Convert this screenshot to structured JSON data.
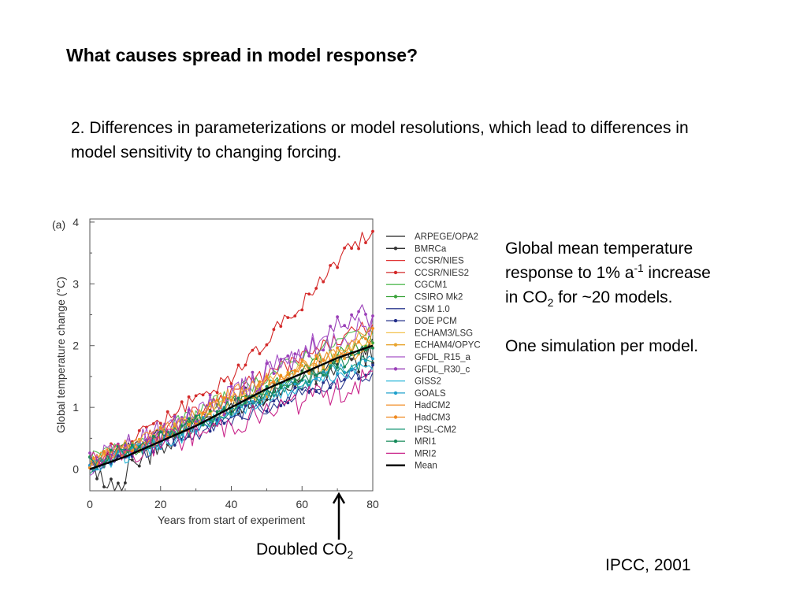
{
  "slide": {
    "title": "What causes spread in model response?",
    "point": "2. Differences in parameterizations or model resolutions, which lead to differences in model sensitivity to changing forcing.",
    "side_line1": "Global mean temperature",
    "side_line2a": "response to 1% a",
    "side_line2sup": "-1",
    "side_line2b": " increase",
    "side_line3a": "in CO",
    "side_line3sub": "2",
    "side_line3b": " for ~20 models.",
    "side_line4": "One simulation per model.",
    "doubled_a": "Doubled CO",
    "doubled_sub": "2",
    "citation": "IPCC, 2001"
  },
  "chart_data": {
    "type": "line",
    "panel_label": "(a)",
    "xlabel": "Years from start of experiment",
    "ylabel": "Global temperature change (°C)",
    "xlim": [
      0,
      80
    ],
    "ylim": [
      -0.35,
      4.05
    ],
    "xticks": [
      0,
      20,
      40,
      60,
      80
    ],
    "yticks": [
      0,
      1,
      2,
      3,
      4
    ],
    "legend_position": "right",
    "series": [
      {
        "name": "ARPEGE/OPA2",
        "color": "#222222",
        "marker": false,
        "anchors": [
          [
            0,
            0.05
          ],
          [
            20,
            0.55
          ],
          [
            40,
            0.95
          ],
          [
            60,
            1.45
          ],
          [
            80,
            2.0
          ]
        ]
      },
      {
        "name": "BMRCa",
        "color": "#333333",
        "marker": true,
        "anchors": [
          [
            0,
            0.0
          ],
          [
            6,
            -0.3
          ],
          [
            20,
            0.4
          ],
          [
            40,
            1.0
          ],
          [
            60,
            1.5
          ],
          [
            80,
            1.85
          ]
        ]
      },
      {
        "name": "CCSR/NIES",
        "color": "#e03030",
        "marker": false,
        "anchors": [
          [
            0,
            0.1
          ],
          [
            20,
            0.6
          ],
          [
            40,
            1.25
          ],
          [
            60,
            1.8
          ],
          [
            80,
            2.35
          ]
        ]
      },
      {
        "name": "CCSR/NIES2",
        "color": "#d42a2a",
        "marker": true,
        "anchors": [
          [
            0,
            0.1
          ],
          [
            20,
            0.75
          ],
          [
            40,
            1.5
          ],
          [
            55,
            2.4
          ],
          [
            65,
            3.0
          ],
          [
            72,
            3.55
          ],
          [
            80,
            3.8
          ]
        ]
      },
      {
        "name": "CGCM1",
        "color": "#55bb55",
        "marker": false,
        "anchors": [
          [
            0,
            0.15
          ],
          [
            20,
            0.6
          ],
          [
            40,
            1.2
          ],
          [
            60,
            1.8
          ],
          [
            80,
            2.3
          ]
        ]
      },
      {
        "name": "CSIRO Mk2",
        "color": "#3aa33a",
        "marker": true,
        "anchors": [
          [
            0,
            0.1
          ],
          [
            20,
            0.5
          ],
          [
            40,
            1.05
          ],
          [
            60,
            1.6
          ],
          [
            80,
            2.1
          ]
        ]
      },
      {
        "name": "CSM 1.0",
        "color": "#2b3a8f",
        "marker": false,
        "anchors": [
          [
            0,
            0.05
          ],
          [
            20,
            0.35
          ],
          [
            40,
            0.8
          ],
          [
            60,
            1.2
          ],
          [
            80,
            1.55
          ]
        ]
      },
      {
        "name": "DOE PCM",
        "color": "#24308a",
        "marker": true,
        "anchors": [
          [
            0,
            0.05
          ],
          [
            20,
            0.4
          ],
          [
            40,
            0.85
          ],
          [
            60,
            1.25
          ],
          [
            80,
            1.6
          ]
        ]
      },
      {
        "name": "ECHAM3/LSG",
        "color": "#f2c14e",
        "marker": false,
        "anchors": [
          [
            0,
            0.1
          ],
          [
            20,
            0.55
          ],
          [
            40,
            1.1
          ],
          [
            60,
            1.65
          ],
          [
            80,
            2.1
          ]
        ]
      },
      {
        "name": "ECHAM4/OPYC",
        "color": "#e8a530",
        "marker": true,
        "anchors": [
          [
            0,
            0.1
          ],
          [
            20,
            0.5
          ],
          [
            40,
            1.05
          ],
          [
            60,
            1.55
          ],
          [
            80,
            2.0
          ]
        ]
      },
      {
        "name": "GFDL_R15_a",
        "color": "#a855c7",
        "marker": false,
        "anchors": [
          [
            0,
            0.1
          ],
          [
            20,
            0.55
          ],
          [
            40,
            1.2
          ],
          [
            60,
            1.9
          ],
          [
            80,
            2.4
          ]
        ]
      },
      {
        "name": "GFDL_R30_c",
        "color": "#9a3fb8",
        "marker": true,
        "anchors": [
          [
            0,
            0.1
          ],
          [
            20,
            0.6
          ],
          [
            40,
            1.15
          ],
          [
            60,
            1.85
          ],
          [
            77,
            2.65
          ],
          [
            80,
            2.3
          ]
        ]
      },
      {
        "name": "GISS2",
        "color": "#29b6d8",
        "marker": false,
        "anchors": [
          [
            0,
            0.05
          ],
          [
            20,
            0.4
          ],
          [
            40,
            0.9
          ],
          [
            60,
            1.35
          ],
          [
            80,
            1.7
          ]
        ]
      },
      {
        "name": "GOALS",
        "color": "#1fa0cc",
        "marker": true,
        "anchors": [
          [
            0,
            0.05
          ],
          [
            20,
            0.45
          ],
          [
            40,
            0.95
          ],
          [
            60,
            1.4
          ],
          [
            80,
            1.8
          ]
        ]
      },
      {
        "name": "HadCM2",
        "color": "#f39a3c",
        "marker": false,
        "anchors": [
          [
            0,
            0.15
          ],
          [
            20,
            0.6
          ],
          [
            40,
            1.2
          ],
          [
            60,
            1.7
          ],
          [
            80,
            2.2
          ]
        ]
      },
      {
        "name": "HadCM3",
        "color": "#ef8a20",
        "marker": true,
        "anchors": [
          [
            0,
            0.1
          ],
          [
            20,
            0.55
          ],
          [
            40,
            1.15
          ],
          [
            60,
            1.65
          ],
          [
            80,
            2.15
          ]
        ]
      },
      {
        "name": "IPSL-CM2",
        "color": "#1e9a7a",
        "marker": false,
        "anchors": [
          [
            0,
            0.05
          ],
          [
            20,
            0.45
          ],
          [
            40,
            0.95
          ],
          [
            60,
            1.4
          ],
          [
            80,
            1.8
          ]
        ]
      },
      {
        "name": "MRI1",
        "color": "#168a5a",
        "marker": true,
        "anchors": [
          [
            0,
            0.1
          ],
          [
            20,
            0.5
          ],
          [
            40,
            1.0
          ],
          [
            60,
            1.5
          ],
          [
            80,
            1.95
          ]
        ]
      },
      {
        "name": "MRI2",
        "color": "#c9248a",
        "marker": false,
        "anchors": [
          [
            0,
            0.1
          ],
          [
            20,
            0.4
          ],
          [
            40,
            0.75
          ],
          [
            60,
            1.1
          ],
          [
            80,
            1.45
          ]
        ]
      },
      {
        "name": "Mean",
        "color": "#000000",
        "marker": false,
        "bold": true,
        "anchors": [
          [
            0,
            0.0
          ],
          [
            10,
            0.2
          ],
          [
            20,
            0.45
          ],
          [
            30,
            0.7
          ],
          [
            40,
            1.0
          ],
          [
            50,
            1.3
          ],
          [
            60,
            1.55
          ],
          [
            70,
            1.8
          ],
          [
            80,
            2.0
          ]
        ]
      }
    ]
  }
}
